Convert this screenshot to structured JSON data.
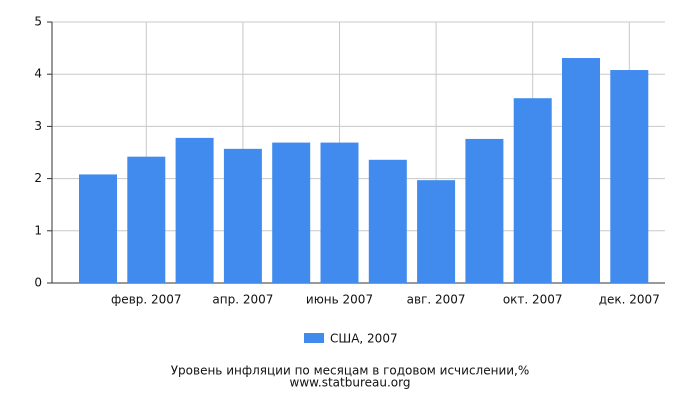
{
  "chart_data": {
    "type": "bar",
    "title": "Уровень инфляции по месяцам в годовом исчислении,%",
    "source": "www.statbureau.org",
    "categories": [
      null,
      "февр. 2007",
      null,
      "апр. 2007",
      null,
      "июнь 2007",
      null,
      "авг. 2007",
      null,
      "окт. 2007",
      null,
      "дек. 2007"
    ],
    "series": [
      {
        "name": "США, 2007",
        "color": "#418bef",
        "values": [
          2.08,
          2.42,
          2.78,
          2.57,
          2.69,
          2.69,
          2.36,
          1.97,
          2.76,
          3.54,
          4.31,
          4.08
        ]
      }
    ],
    "ylim": [
      0,
      5
    ],
    "yticks": [
      0,
      1,
      2,
      3,
      4,
      5
    ],
    "grid": true
  }
}
